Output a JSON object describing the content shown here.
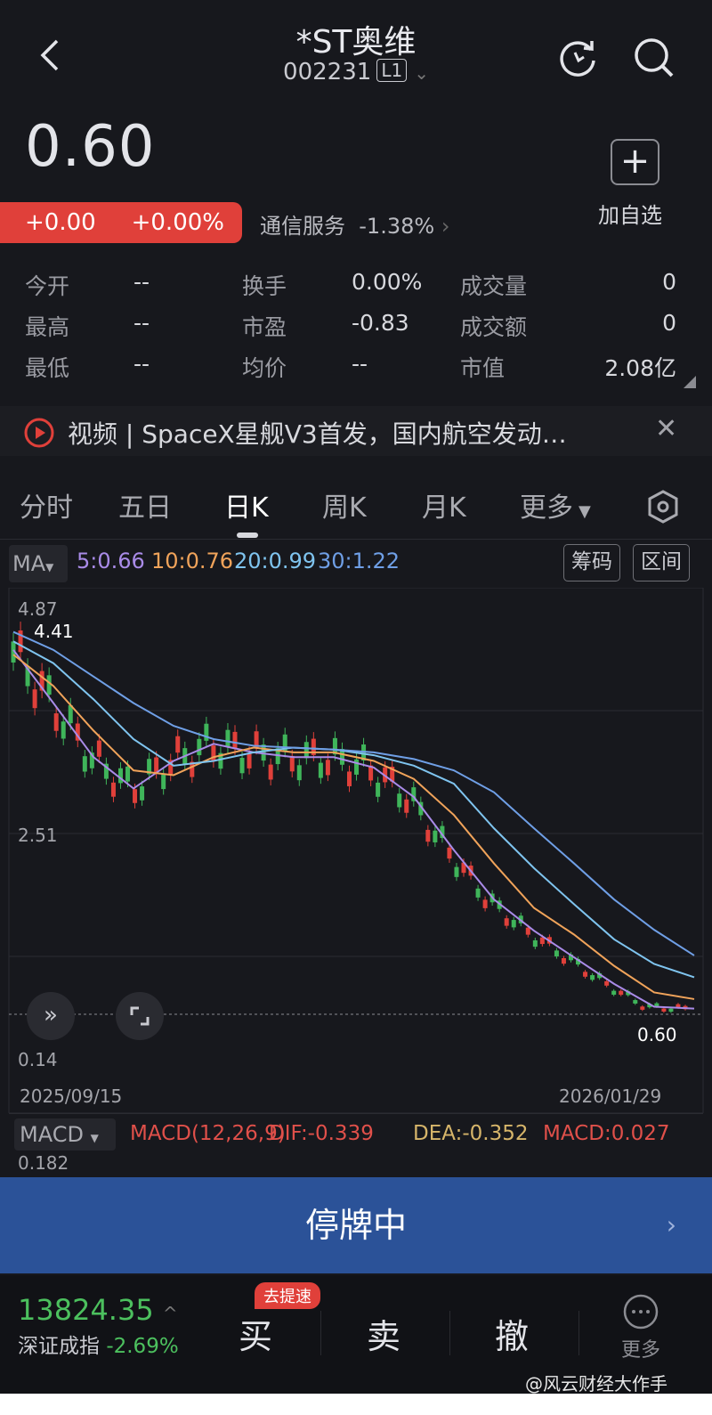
{
  "header": {
    "title": "*ST奥维",
    "code": "002231",
    "level": "L1"
  },
  "quote": {
    "price": "0.60",
    "change": "+0.00",
    "change_pct": "+0.00%",
    "sector_name": "通信服务",
    "sector_pct": "-1.38%",
    "add_watch": "加自选"
  },
  "stats": [
    {
      "label": "今开",
      "value": "--"
    },
    {
      "label": "换手",
      "value": "0.00%"
    },
    {
      "label": "成交量",
      "value": "0"
    },
    {
      "label": "最高",
      "value": "--"
    },
    {
      "label": "市盈",
      "value": "-0.83"
    },
    {
      "label": "成交额",
      "value": "0"
    },
    {
      "label": "最低",
      "value": "--"
    },
    {
      "label": "均价",
      "value": "--"
    },
    {
      "label": "市值",
      "value": "2.08亿"
    }
  ],
  "news": {
    "text": "视频 | SpaceX星舰V3首发，国内航空发动…"
  },
  "tabs": [
    {
      "label": "分时"
    },
    {
      "label": "五日"
    },
    {
      "label": "日K",
      "active": true
    },
    {
      "label": "周K"
    },
    {
      "label": "月K"
    },
    {
      "label": "更多"
    }
  ],
  "ma": {
    "selector": "MA",
    "ma5": "5:0.66",
    "ma10": "10:0.76",
    "ma20": "20:0.99",
    "ma30": "30:1.22",
    "chips_btn": "筹码",
    "range_btn": "区间"
  },
  "colors": {
    "ma5": "#a98be8",
    "ma10": "#f0a35a",
    "ma20": "#7fc4ef",
    "ma30": "#6f9fe6",
    "up": "#e0403a",
    "down": "#3fb55a",
    "trade_bar": "#2b5298"
  },
  "chart_data": {
    "type": "line",
    "title": "",
    "y_ticks": [
      "4.87",
      "2.51",
      "0.14"
    ],
    "ylim": [
      0.14,
      4.87
    ],
    "x_ticks": [
      "2025/09/15",
      "2026/01/29"
    ],
    "high_label": "4.41",
    "last_label": "0.60",
    "series": [
      {
        "name": "MA5",
        "values": [
          4.44,
          3.88,
          3.31,
          2.98,
          3.27,
          3.45,
          3.36,
          3.31,
          3.31,
          3.2,
          2.89,
          2.33,
          1.81,
          1.48,
          1.2,
          0.92,
          0.68,
          0.66
        ]
      },
      {
        "name": "MA10",
        "values": [
          4.39,
          4.06,
          3.59,
          3.17,
          3.12,
          3.31,
          3.41,
          3.36,
          3.36,
          3.27,
          3.08,
          2.7,
          2.19,
          1.72,
          1.44,
          1.11,
          0.83,
          0.76
        ]
      },
      {
        "name": "MA20",
        "values": [
          4.53,
          4.3,
          3.92,
          3.5,
          3.22,
          3.27,
          3.36,
          3.41,
          3.39,
          3.33,
          3.22,
          3.03,
          2.56,
          2.14,
          1.76,
          1.39,
          1.13,
          0.99
        ]
      },
      {
        "name": "MA30",
        "values": [
          4.63,
          4.44,
          4.16,
          3.88,
          3.64,
          3.5,
          3.43,
          3.41,
          3.39,
          3.36,
          3.29,
          3.17,
          2.94,
          2.56,
          2.19,
          1.81,
          1.49,
          1.22
        ]
      }
    ]
  },
  "macd": {
    "selector": "MACD",
    "params": "MACD(12,26,9)",
    "dif": "DIF:-0.339",
    "dea": "DEA:-0.352",
    "macd": "MACD:0.027",
    "top_tick": "0.182"
  },
  "trade": {
    "status": "停牌中"
  },
  "bottom": {
    "index_value": "13824.35",
    "index_name": "深证成指",
    "index_pct": "-2.69%",
    "buy": "买",
    "buy_badge": "去提速",
    "sell": "卖",
    "cancel": "撤",
    "more": "更多"
  },
  "watermark": "@风云财经大作手"
}
